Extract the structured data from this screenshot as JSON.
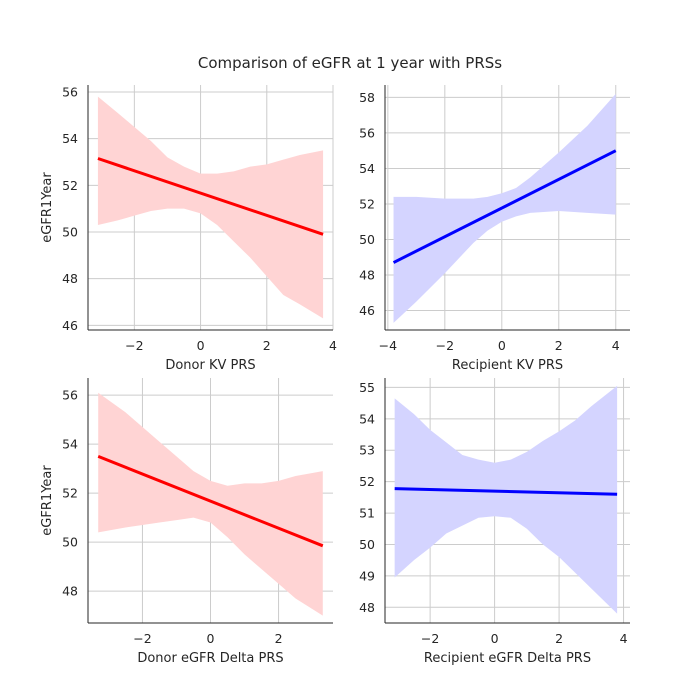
{
  "figure": {
    "title": "Comparison of eGFR at 1 year with PRSs"
  },
  "chart_data": [
    {
      "type": "line",
      "panel": "top-left",
      "xlabel": "Donor KV PRS",
      "ylabel": "eGFR1Year",
      "xlim": [
        -3.4,
        4.0
      ],
      "ylim": [
        45.8,
        56.3
      ],
      "xticks": [
        -2,
        0,
        2,
        4
      ],
      "yticks": [
        46,
        48,
        50,
        52,
        54,
        56
      ],
      "grid": true,
      "color": "#ff0000",
      "band_color": "#ffd4d4",
      "series": [
        {
          "x": [
            -3.1,
            3.7
          ],
          "y": [
            53.15,
            49.9
          ]
        }
      ],
      "ci_band": {
        "x": [
          -3.1,
          -2.5,
          -2.0,
          -1.5,
          -1.0,
          -0.5,
          0.0,
          0.5,
          1.0,
          1.5,
          2.0,
          2.5,
          3.0,
          3.7
        ],
        "upper": [
          55.8,
          55.1,
          54.5,
          53.9,
          53.2,
          52.8,
          52.5,
          52.5,
          52.6,
          52.8,
          52.9,
          53.1,
          53.3,
          53.5
        ],
        "lower": [
          50.3,
          50.5,
          50.7,
          50.9,
          51.0,
          51.0,
          50.8,
          50.3,
          49.6,
          48.9,
          48.1,
          47.3,
          46.9,
          46.3
        ]
      }
    },
    {
      "type": "line",
      "panel": "top-right",
      "xlabel": "Recipient KV PRS",
      "ylabel": "",
      "xlim": [
        -4.1,
        4.5
      ],
      "ylim": [
        44.9,
        58.7
      ],
      "xticks": [
        -4,
        -2,
        0,
        2,
        4
      ],
      "yticks": [
        46,
        48,
        50,
        52,
        54,
        56,
        58
      ],
      "grid": true,
      "color": "#0000ff",
      "band_color": "#d4d4ff",
      "series": [
        {
          "x": [
            -3.8,
            4.0
          ],
          "y": [
            48.7,
            55.0
          ]
        }
      ],
      "ci_band": {
        "x": [
          -3.8,
          -3.0,
          -2.0,
          -1.0,
          -0.5,
          0.0,
          0.5,
          1.0,
          2.0,
          3.0,
          4.0
        ],
        "upper": [
          52.4,
          52.4,
          52.3,
          52.3,
          52.4,
          52.6,
          52.9,
          53.5,
          54.9,
          56.4,
          58.2
        ],
        "lower": [
          45.3,
          46.5,
          48.1,
          49.8,
          50.5,
          51.0,
          51.3,
          51.5,
          51.6,
          51.5,
          51.4
        ]
      }
    },
    {
      "type": "line",
      "panel": "bottom-left",
      "xlabel": "Donor eGFR Delta PRS",
      "ylabel": "eGFR1Year",
      "xlim": [
        -3.6,
        3.6
      ],
      "ylim": [
        46.7,
        56.7
      ],
      "xticks": [
        -2,
        0,
        2
      ],
      "yticks": [
        48,
        50,
        52,
        54,
        56
      ],
      "grid": true,
      "color": "#ff0000",
      "band_color": "#ffd4d4",
      "series": [
        {
          "x": [
            -3.3,
            3.3
          ],
          "y": [
            53.5,
            49.85
          ]
        }
      ],
      "ci_band": {
        "x": [
          -3.3,
          -2.5,
          -2.0,
          -1.5,
          -1.0,
          -0.5,
          0.0,
          0.5,
          1.0,
          1.5,
          2.0,
          2.5,
          3.3
        ],
        "upper": [
          56.1,
          55.3,
          54.7,
          54.1,
          53.5,
          52.9,
          52.5,
          52.3,
          52.4,
          52.4,
          52.5,
          52.7,
          52.9
        ],
        "lower": [
          50.4,
          50.6,
          50.7,
          50.8,
          50.9,
          51.0,
          50.8,
          50.2,
          49.5,
          48.9,
          48.3,
          47.7,
          47.0
        ]
      }
    },
    {
      "type": "line",
      "panel": "bottom-right",
      "xlabel": "Recipient eGFR Delta PRS",
      "ylabel": "",
      "xlim": [
        -3.4,
        4.2
      ],
      "ylim": [
        47.5,
        55.3
      ],
      "xticks": [
        -2,
        0,
        2,
        4
      ],
      "yticks": [
        48,
        49,
        50,
        51,
        52,
        53,
        54,
        55
      ],
      "grid": true,
      "color": "#0000ff",
      "band_color": "#d4d4ff",
      "series": [
        {
          "x": [
            -3.1,
            3.8
          ],
          "y": [
            51.78,
            51.6
          ]
        }
      ],
      "ci_band": {
        "x": [
          -3.1,
          -2.5,
          -2.0,
          -1.5,
          -1.0,
          -0.5,
          0.0,
          0.5,
          1.0,
          1.5,
          2.0,
          2.5,
          3.0,
          3.8
        ],
        "upper": [
          54.65,
          54.15,
          53.65,
          53.25,
          52.85,
          52.7,
          52.6,
          52.7,
          52.95,
          53.3,
          53.6,
          53.95,
          54.4,
          55.05
        ],
        "lower": [
          48.95,
          49.5,
          49.9,
          50.35,
          50.6,
          50.85,
          50.9,
          50.85,
          50.5,
          50.0,
          49.6,
          49.1,
          48.6,
          47.8
        ]
      }
    }
  ]
}
